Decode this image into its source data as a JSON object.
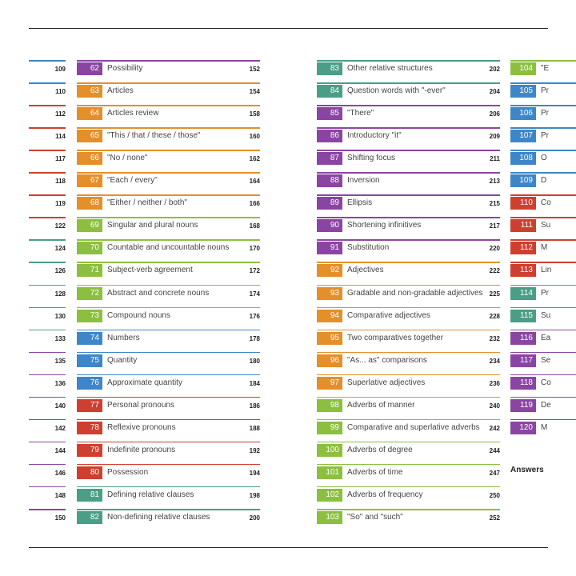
{
  "colors": {
    "purple": "#8a45a3",
    "orange": "#e58f2a",
    "green": "#8cbf3f",
    "blue": "#3f86c8",
    "red": "#cf3f2f",
    "teal": "#4a9e86"
  },
  "left_edge": [
    {
      "page": "109",
      "color": "#3f86c8"
    },
    {
      "page": "110",
      "color": "#3f86c8"
    },
    {
      "page": "112",
      "color": "#cf3f2f"
    },
    {
      "page": "114",
      "color": "#cf3f2f"
    },
    {
      "page": "117",
      "color": "#cf3f2f"
    },
    {
      "page": "118",
      "color": "#cf3f2f"
    },
    {
      "page": "119",
      "color": "#cf3f2f"
    },
    {
      "page": "122",
      "color": "#cf3f2f"
    },
    {
      "page": "124",
      "color": "#4a9e86"
    },
    {
      "page": "126",
      "color": "#4a9e86"
    },
    {
      "page": "128",
      "color": "#4a9e86"
    },
    {
      "page": "130",
      "color": "#4a9e86"
    },
    {
      "page": "133",
      "color": "#4a9e86"
    },
    {
      "page": "135",
      "color": "#8a45a3"
    },
    {
      "page": "136",
      "color": "#8a45a3"
    },
    {
      "page": "140",
      "color": "#8a45a3"
    },
    {
      "page": "142",
      "color": "#8a45a3"
    },
    {
      "page": "144",
      "color": "#8a45a3"
    },
    {
      "page": "146",
      "color": "#8a45a3"
    },
    {
      "page": "148",
      "color": "#8a45a3"
    },
    {
      "page": "150",
      "color": "#8a45a3"
    }
  ],
  "col1": [
    {
      "num": "62",
      "title": "Possibility",
      "page": "152",
      "color": "#8a45a3"
    },
    {
      "num": "63",
      "title": "Articles",
      "page": "154",
      "color": "#e58f2a"
    },
    {
      "num": "64",
      "title": "Articles review",
      "page": "158",
      "color": "#e58f2a"
    },
    {
      "num": "65",
      "title": "\"This / that / these / those\"",
      "page": "160",
      "color": "#e58f2a"
    },
    {
      "num": "66",
      "title": "\"No / none\"",
      "page": "162",
      "color": "#e58f2a"
    },
    {
      "num": "67",
      "title": "\"Each / every\"",
      "page": "164",
      "color": "#e58f2a"
    },
    {
      "num": "68",
      "title": "\"Either / neither / both\"",
      "page": "166",
      "color": "#e58f2a"
    },
    {
      "num": "69",
      "title": "Singular and plural nouns",
      "page": "168",
      "color": "#8cbf3f"
    },
    {
      "num": "70",
      "title": "Countable and uncountable nouns",
      "page": "170",
      "color": "#8cbf3f"
    },
    {
      "num": "71",
      "title": "Subject-verb agreement",
      "page": "172",
      "color": "#8cbf3f"
    },
    {
      "num": "72",
      "title": "Abstract and concrete nouns",
      "page": "174",
      "color": "#8cbf3f"
    },
    {
      "num": "73",
      "title": "Compound nouns",
      "page": "176",
      "color": "#8cbf3f"
    },
    {
      "num": "74",
      "title": "Numbers",
      "page": "178",
      "color": "#3f86c8"
    },
    {
      "num": "75",
      "title": "Quantity",
      "page": "180",
      "color": "#3f86c8"
    },
    {
      "num": "76",
      "title": "Approximate quantity",
      "page": "184",
      "color": "#3f86c8"
    },
    {
      "num": "77",
      "title": "Personal pronouns",
      "page": "186",
      "color": "#cf3f2f"
    },
    {
      "num": "78",
      "title": "Reflexive pronouns",
      "page": "188",
      "color": "#cf3f2f"
    },
    {
      "num": "79",
      "title": "Indefinite pronouns",
      "page": "192",
      "color": "#cf3f2f"
    },
    {
      "num": "80",
      "title": "Possession",
      "page": "194",
      "color": "#cf3f2f"
    },
    {
      "num": "81",
      "title": "Defining relative clauses",
      "page": "198",
      "color": "#4a9e86"
    },
    {
      "num": "82",
      "title": "Non-defining relative clauses",
      "page": "200",
      "color": "#4a9e86"
    }
  ],
  "col2": [
    {
      "num": "83",
      "title": "Other relative structures",
      "page": "202",
      "color": "#4a9e86"
    },
    {
      "num": "84",
      "title": "Question words with \"-ever\"",
      "page": "204",
      "color": "#4a9e86"
    },
    {
      "num": "85",
      "title": "\"There\"",
      "page": "206",
      "color": "#8a45a3"
    },
    {
      "num": "86",
      "title": "Introductory \"it\"",
      "page": "209",
      "color": "#8a45a3"
    },
    {
      "num": "87",
      "title": "Shifting focus",
      "page": "211",
      "color": "#8a45a3"
    },
    {
      "num": "88",
      "title": "Inversion",
      "page": "213",
      "color": "#8a45a3"
    },
    {
      "num": "89",
      "title": "Ellipsis",
      "page": "215",
      "color": "#8a45a3"
    },
    {
      "num": "90",
      "title": "Shortening infinitives",
      "page": "217",
      "color": "#8a45a3"
    },
    {
      "num": "91",
      "title": "Substitution",
      "page": "220",
      "color": "#8a45a3"
    },
    {
      "num": "92",
      "title": "Adjectives",
      "page": "222",
      "color": "#e58f2a"
    },
    {
      "num": "93",
      "title": "Gradable and non-gradable adjectives",
      "page": "225",
      "color": "#e58f2a"
    },
    {
      "num": "94",
      "title": "Comparative adjectives",
      "page": "228",
      "color": "#e58f2a"
    },
    {
      "num": "95",
      "title": "Two comparatives together",
      "page": "232",
      "color": "#e58f2a"
    },
    {
      "num": "96",
      "title": "\"As... as\" comparisons",
      "page": "234",
      "color": "#e58f2a"
    },
    {
      "num": "97",
      "title": "Superlative adjectives",
      "page": "236",
      "color": "#e58f2a"
    },
    {
      "num": "98",
      "title": "Adverbs of manner",
      "page": "240",
      "color": "#8cbf3f"
    },
    {
      "num": "99",
      "title": "Comparative and superlative adverbs",
      "page": "242",
      "color": "#8cbf3f"
    },
    {
      "num": "100",
      "title": "Adverbs of degree",
      "page": "244",
      "color": "#8cbf3f"
    },
    {
      "num": "101",
      "title": "Adverbs of time",
      "page": "247",
      "color": "#8cbf3f"
    },
    {
      "num": "102",
      "title": "Adverbs of frequency",
      "page": "250",
      "color": "#8cbf3f"
    },
    {
      "num": "103",
      "title": "\"So\" and \"such\"",
      "page": "252",
      "color": "#8cbf3f"
    }
  ],
  "col3": [
    {
      "num": "104",
      "title": "\"E",
      "color": "#8cbf3f"
    },
    {
      "num": "105",
      "title": "Pr",
      "color": "#3f86c8"
    },
    {
      "num": "106",
      "title": "Pr",
      "color": "#3f86c8"
    },
    {
      "num": "107",
      "title": "Pr",
      "color": "#3f86c8"
    },
    {
      "num": "108",
      "title": "O",
      "color": "#3f86c8"
    },
    {
      "num": "109",
      "title": "D",
      "color": "#3f86c8"
    },
    {
      "num": "110",
      "title": "Co",
      "color": "#cf3f2f"
    },
    {
      "num": "111",
      "title": "Su",
      "color": "#cf3f2f"
    },
    {
      "num": "112",
      "title": "M",
      "color": "#cf3f2f"
    },
    {
      "num": "113",
      "title": "Lin",
      "color": "#cf3f2f"
    },
    {
      "num": "114",
      "title": "Pr",
      "color": "#4a9e86"
    },
    {
      "num": "115",
      "title": "Su",
      "color": "#4a9e86"
    },
    {
      "num": "116",
      "title": "Ea",
      "color": "#8a45a3"
    },
    {
      "num": "117",
      "title": "Se",
      "color": "#8a45a3"
    },
    {
      "num": "118",
      "title": "Co",
      "color": "#8a45a3"
    },
    {
      "num": "119",
      "title": "De",
      "color": "#8a45a3"
    },
    {
      "num": "120",
      "title": "M",
      "color": "#8a45a3"
    }
  ],
  "answers_label": "Answers"
}
